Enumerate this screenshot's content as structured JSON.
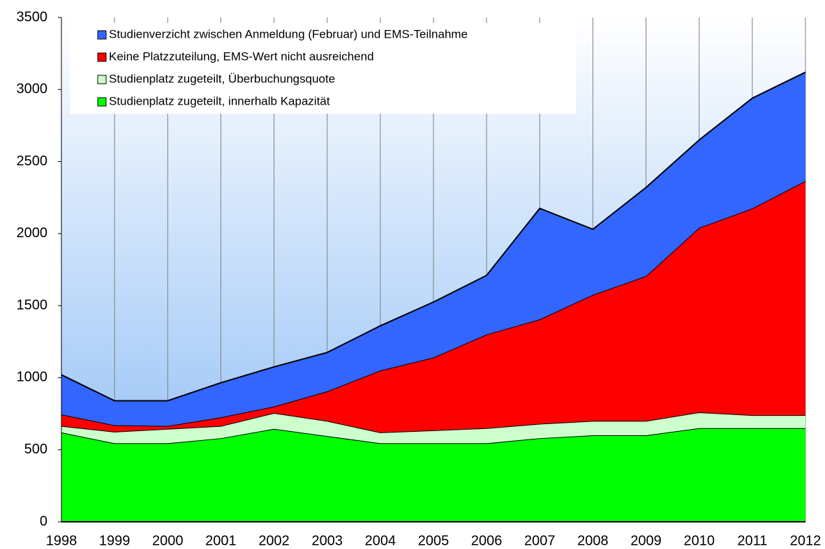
{
  "chart_data": {
    "type": "stacked-area",
    "x": [
      1998,
      1999,
      2000,
      2001,
      2002,
      2003,
      2004,
      2005,
      2006,
      2007,
      2008,
      2009,
      2010,
      2011,
      2012
    ],
    "xlim": [
      1998,
      2012
    ],
    "xticks": [
      1998,
      1999,
      2000,
      2001,
      2002,
      2003,
      2004,
      2005,
      2006,
      2007,
      2008,
      2009,
      2010,
      2011,
      2012
    ],
    "ylim": [
      0,
      3500
    ],
    "yticks": [
      0,
      500,
      1000,
      1500,
      2000,
      2500,
      3000,
      3500
    ],
    "grid": "x",
    "legend": "top-left",
    "series": [
      {
        "name": "Studienplatz zugeteilt, innerhalb Kapazität",
        "color": "#00ff00",
        "values": [
          620,
          545,
          545,
          580,
          645,
          595,
          545,
          545,
          545,
          580,
          600,
          600,
          650,
          650,
          650
        ]
      },
      {
        "name": "Studienplatz zugeteilt, Überbuchungsquote",
        "color": "#ccffcc",
        "values": [
          45,
          80,
          100,
          85,
          110,
          105,
          75,
          90,
          105,
          100,
          100,
          100,
          110,
          90,
          90
        ]
      },
      {
        "name": "Keine Platzzuteilung, EMS-Wert nicht ausreichend",
        "color": "#ff0000",
        "values": [
          80,
          45,
          20,
          60,
          45,
          205,
          430,
          505,
          650,
          725,
          875,
          1005,
          1280,
          1435,
          1625
        ]
      },
      {
        "name": "Studienverzicht zwischen Anmeldung (Februar) und EMS-Teilnahme",
        "color": "#3366ff",
        "values": [
          275,
          170,
          175,
          240,
          275,
          270,
          310,
          385,
          410,
          770,
          455,
          615,
          610,
          765,
          755
        ]
      }
    ]
  }
}
